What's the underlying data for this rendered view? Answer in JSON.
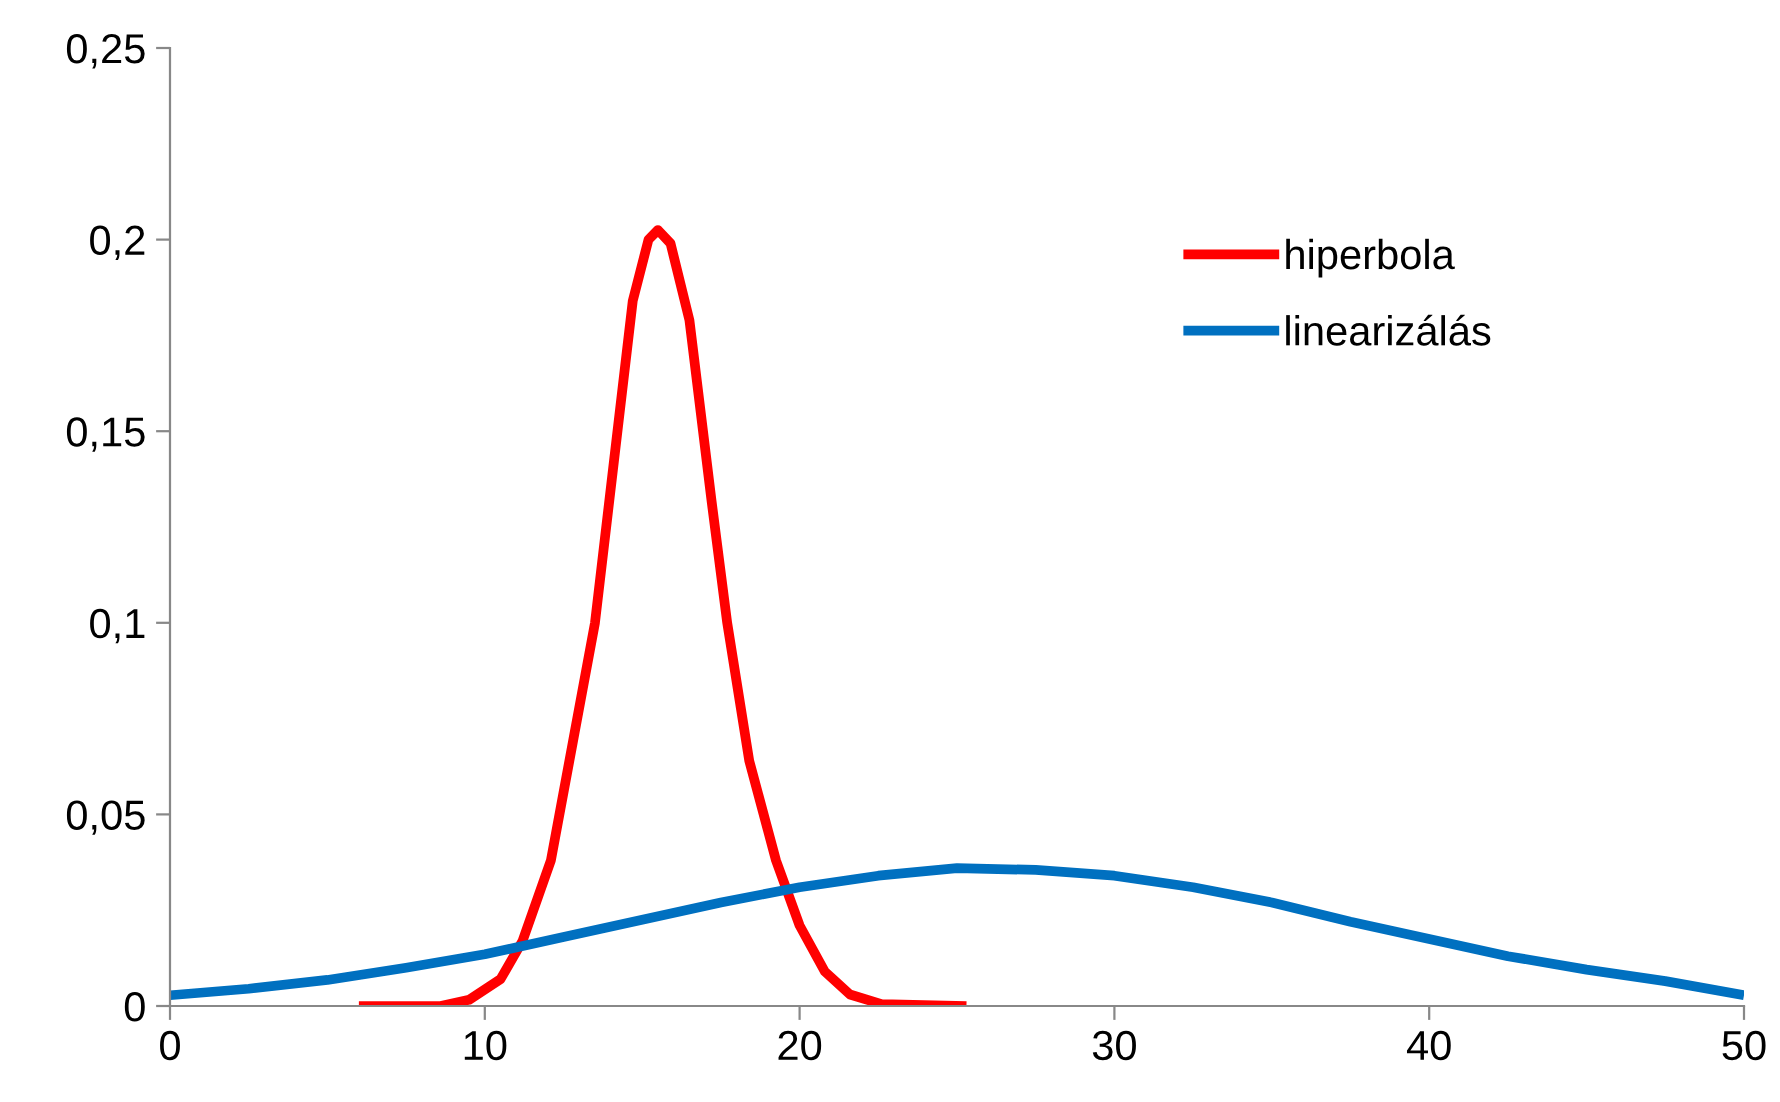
{
  "chart_data": {
    "type": "line",
    "series": [
      {
        "name": "hiperbola",
        "color": "#ff0000",
        "x": [
          6,
          8.6,
          9.5,
          10.5,
          11.2,
          12.1,
          12.8,
          13.5,
          14.1,
          14.7,
          15.2,
          15.5,
          15.9,
          16.5,
          17.2,
          17.7,
          18.4,
          19.25,
          20,
          20.8,
          21.6,
          22.6,
          25.3
        ],
        "values": [
          0,
          0,
          0.0016,
          0.007,
          0.017,
          0.038,
          0.069,
          0.1,
          0.142,
          0.184,
          0.2,
          0.2025,
          0.199,
          0.179,
          0.132,
          0.1,
          0.064,
          0.038,
          0.021,
          0.009,
          0.003,
          0.0005,
          0
        ]
      },
      {
        "name": "linearizálás",
        "color": "#0070c0",
        "x": [
          0,
          2.5,
          5,
          7.5,
          10,
          12.5,
          15,
          17.5,
          20,
          22.5,
          25,
          27.5,
          30,
          32.5,
          35,
          37.5,
          40,
          42.5,
          45,
          47.5,
          50
        ],
        "values": [
          0.0028,
          0.0045,
          0.0068,
          0.01,
          0.0135,
          0.018,
          0.0225,
          0.027,
          0.031,
          0.034,
          0.036,
          0.0355,
          0.034,
          0.031,
          0.027,
          0.022,
          0.0175,
          0.013,
          0.0095,
          0.0065,
          0.0028
        ]
      }
    ],
    "xlim": [
      0,
      50
    ],
    "xticks": [
      0,
      10,
      20,
      30,
      40,
      50
    ],
    "ylim": [
      0,
      0.25
    ],
    "yticks": [
      0,
      {
        "value": 0.05,
        "label": "0,05"
      },
      {
        "value": 0.1,
        "label": "0,1"
      },
      {
        "value": 0.15,
        "label": "0,15"
      },
      {
        "value": 0.2,
        "label": "0,2"
      },
      {
        "value": 0.25,
        "label": "0,25"
      }
    ],
    "grid": false,
    "legend": "top right",
    "marker": "none",
    "line_style": "solid"
  }
}
